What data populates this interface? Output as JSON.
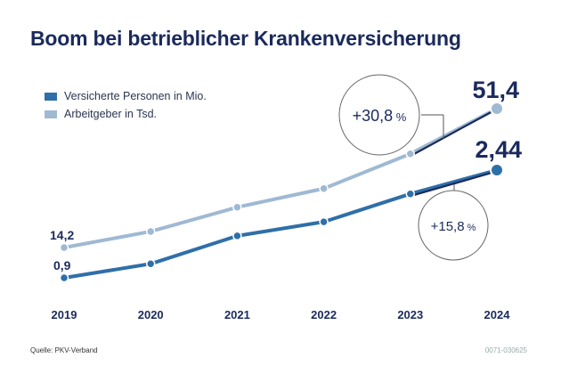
{
  "title": "Boom bei betrieblicher Krankenversicherung",
  "source": "Quelle: PKV-Verband",
  "code": "0071-030625",
  "colors": {
    "dark": "#2f6fa8",
    "light": "#9fb9d3",
    "navy": "#1b2a5c",
    "background": "#ffffff"
  },
  "chart_data": {
    "type": "line",
    "title": "Boom bei betrieblicher Krankenversicherung",
    "categories": [
      "2019",
      "2020",
      "2021",
      "2022",
      "2023",
      "2024"
    ],
    "series": [
      {
        "name": "Versicherte Personen in Mio.",
        "color": "#2f6fa8",
        "values": [
          0.9,
          1.1,
          1.5,
          1.7,
          2.1,
          2.44
        ],
        "start_label": "0,9",
        "end_label": "2,44",
        "change_label": "+15,8",
        "change_unit": "%"
      },
      {
        "name": "Arbeitgeber in Tsd.",
        "color": "#9fb9d3",
        "values": [
          14.2,
          18.5,
          25.0,
          30.0,
          39.3,
          51.4
        ],
        "start_label": "14,2",
        "end_label": "51,4",
        "change_label": "+30,8",
        "change_unit": "%"
      }
    ],
    "legend_position": "top-left",
    "grid": false
  }
}
